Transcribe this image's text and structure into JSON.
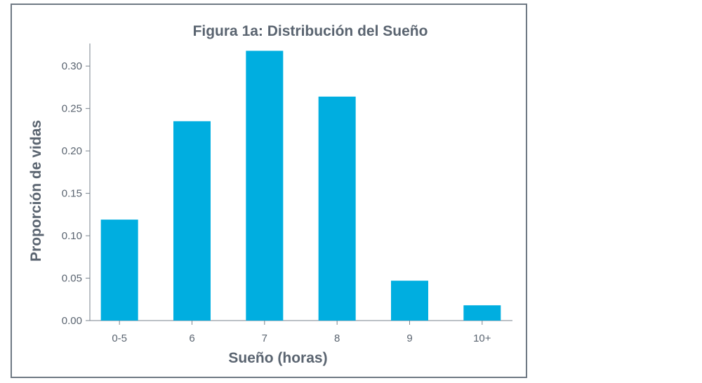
{
  "chart_data": {
    "type": "bar",
    "title": "Figura 1a: Distribución del Sueño",
    "xlabel": "Sueño (horas)",
    "ylabel": "Proporción de vidas",
    "categories": [
      "0-5",
      "6",
      "7",
      "8",
      "9",
      "10+"
    ],
    "values": [
      0.119,
      0.235,
      0.318,
      0.264,
      0.047,
      0.018
    ],
    "ylim": [
      0,
      0.32
    ],
    "yticks": [
      "0.00",
      "0.05",
      "0.10",
      "0.15",
      "0.20",
      "0.25",
      "0.30"
    ],
    "ytick_values": [
      0,
      0.05,
      0.1,
      0.15,
      0.2,
      0.25,
      0.3
    ],
    "grid": false,
    "bar_color": "#00aee0",
    "text_color": "#5a6470",
    "frame_color": "#6f7984"
  }
}
